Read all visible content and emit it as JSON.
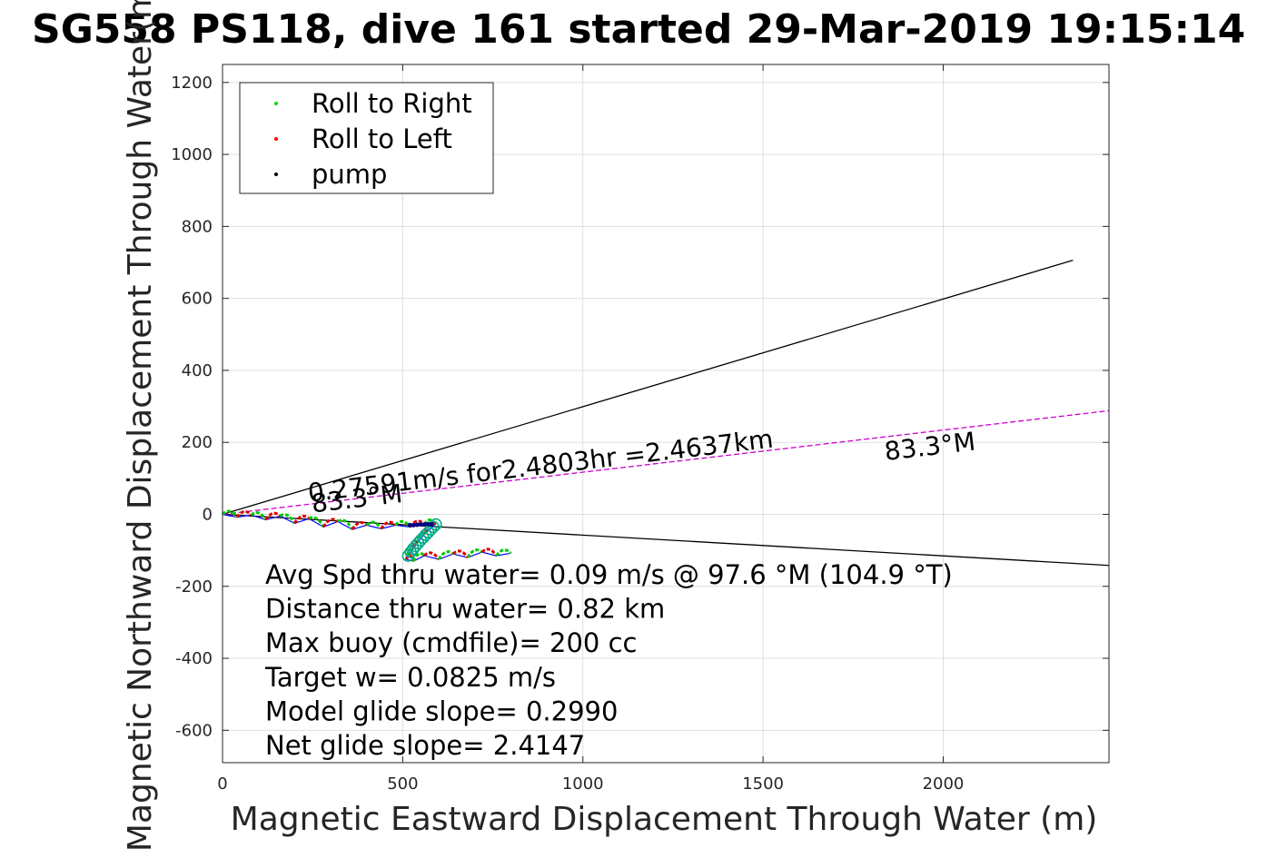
{
  "chart_data": {
    "type": "scatter",
    "title": "SG558 PS118, dive 161 started 29-Mar-2019 19:15:14",
    "xlabel": "Magnetic Eastward Displacement Through Water (m)",
    "ylabel": "Magnetic Northward Displacement Through Water(m)",
    "xlim": [
      0,
      2460
    ],
    "ylim": [
      -690,
      1250
    ],
    "xticks": [
      0,
      500,
      1000,
      1500,
      2000
    ],
    "yticks": [
      -600,
      -400,
      -200,
      0,
      200,
      400,
      600,
      800,
      1000,
      1200
    ],
    "grid": true,
    "legend": {
      "placement": "top-left",
      "entries": [
        {
          "label": "Roll to Right",
          "color": "#00dd00"
        },
        {
          "label": "Roll to Left",
          "color": "#ff0000"
        },
        {
          "label": "pump",
          "color": "#000000"
        }
      ]
    },
    "lines": [
      {
        "kind": "current-bound-upper",
        "color": "#000000",
        "x": [
          0,
          2360
        ],
        "y": [
          0,
          706
        ]
      },
      {
        "kind": "current-bound-lower",
        "color": "#000000",
        "x": [
          0,
          2460
        ],
        "y": [
          0,
          -142
        ]
      },
      {
        "kind": "current-heading",
        "color": "#cc00cc",
        "x": [
          0,
          2460
        ],
        "y": [
          0,
          288
        ]
      }
    ],
    "track": {
      "color": "#0000ff",
      "x": [
        0,
        40,
        80,
        120,
        160,
        200,
        240,
        280,
        320,
        360,
        400,
        440,
        480,
        520,
        560,
        590,
        560,
        540,
        525,
        510,
        530,
        560,
        600,
        640,
        680,
        720,
        760,
        800
      ],
      "y": [
        0,
        -8,
        -2,
        -15,
        -5,
        -25,
        -12,
        -35,
        -20,
        -42,
        -30,
        -40,
        -30,
        -35,
        -28,
        -28,
        -55,
        -80,
        -100,
        -125,
        -130,
        -115,
        -125,
        -110,
        -120,
        -105,
        -115,
        -108
      ]
    },
    "pump_points": {
      "color": "#000080",
      "x": [
        520,
        530,
        540,
        550,
        560,
        570,
        580
      ],
      "y": [
        -30,
        -30,
        -29,
        -28,
        -28,
        -27,
        -28
      ]
    },
    "circle_markers": {
      "color": "#00aa88",
      "x": [
        515,
        522,
        529,
        536,
        543,
        550,
        557,
        564,
        571,
        578,
        585,
        592
      ],
      "y": [
        -115,
        -105,
        -96,
        -88,
        -80,
        -72,
        -65,
        -57,
        -50,
        -42,
        -35,
        -28
      ]
    },
    "annotations": [
      {
        "text": "0.27591m/s for2.4803hr =2.4637km",
        "x": 240,
        "y": 35,
        "rotation_deg": -6.7
      },
      {
        "text": "83.3°M",
        "x": 1840,
        "y": 150,
        "rotation_deg": -6.7
      },
      {
        "text": "83.3°M",
        "x": 250,
        "y": 5,
        "rotation_deg": -6.7
      }
    ],
    "stats": [
      "Avg Spd thru water=  0.09 m/s @  97.6 °M (104.9 °T)",
      "Distance thru water=  0.82 km",
      "Max buoy (cmdfile)= 200 cc",
      "Target w= 0.0825 m/s",
      "Model glide slope= 0.2990",
      "Net glide slope= 2.4147"
    ]
  }
}
